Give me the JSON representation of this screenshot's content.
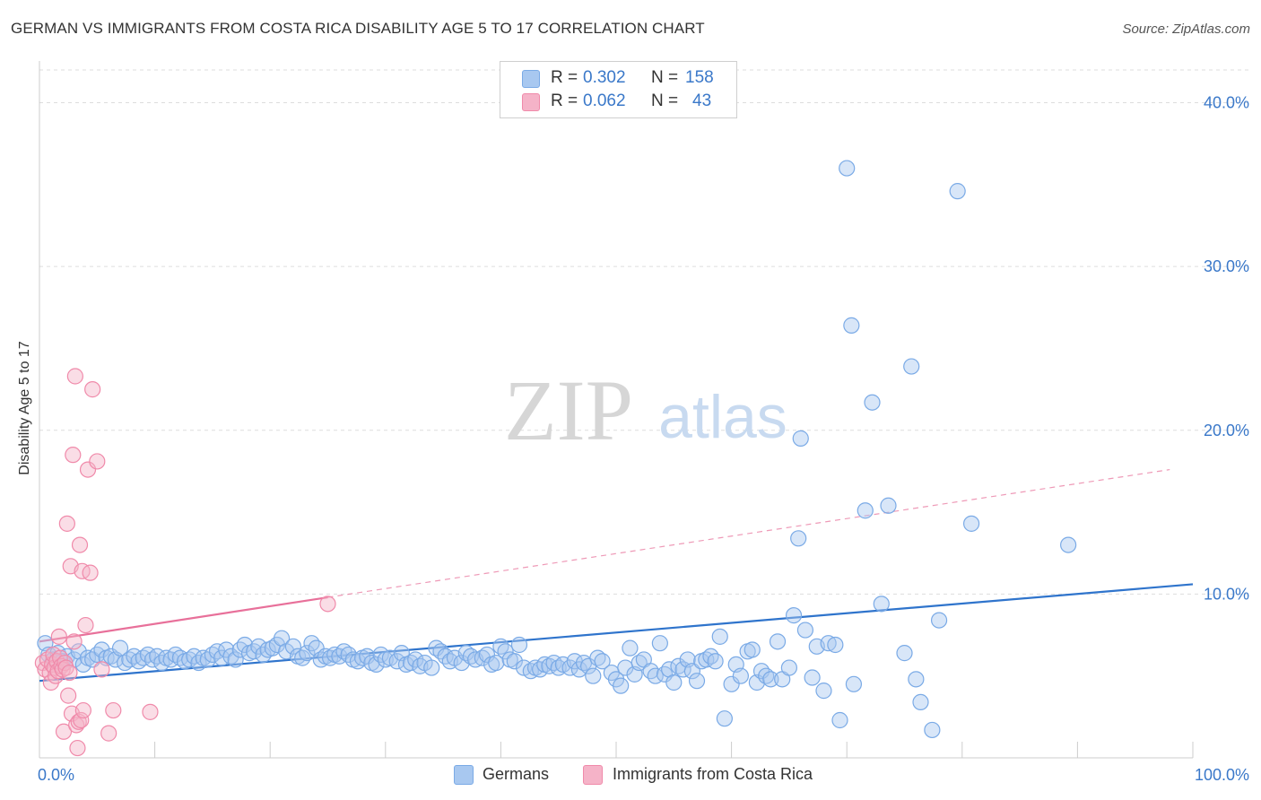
{
  "title": "GERMAN VS IMMIGRANTS FROM COSTA RICA DISABILITY AGE 5 TO 17 CORRELATION CHART",
  "source": "Source: ZipAtlas.com",
  "watermark": {
    "zip": "ZIP",
    "atlas": "atlas"
  },
  "legend_top": {
    "rows": [
      {
        "r_label": "R =",
        "r_value": "0.302",
        "n_label": "N =",
        "n_value": "158",
        "color": "#a8c8f0"
      },
      {
        "r_label": "R =",
        "r_value": "0.062",
        "n_label": "N =",
        "n_value": "43",
        "color": "#f5b3c8"
      }
    ]
  },
  "legend_bottom": [
    {
      "label": "Germans",
      "color": "#a8c8f0"
    },
    {
      "label": "Immigrants from Costa Rica",
      "color": "#f5b3c8"
    }
  ],
  "chart_data": {
    "type": "scatter",
    "xlabel": "",
    "ylabel": "Disability Age 5 to 17",
    "xlim": [
      0,
      100
    ],
    "ylim": [
      0,
      42
    ],
    "x_ticks": [
      {
        "v": 0,
        "label": "0.0%"
      },
      {
        "v": 100,
        "label": "100.0%"
      }
    ],
    "y_ticks": [
      {
        "v": 10,
        "label": "10.0%"
      },
      {
        "v": 20,
        "label": "20.0%"
      },
      {
        "v": 30,
        "label": "30.0%"
      },
      {
        "v": 40,
        "label": "40.0%"
      }
    ],
    "grid": true,
    "legend_position": "top-center",
    "series": [
      {
        "name": "Germans",
        "color": "#7aaae6",
        "fill": "rgba(168,200,240,0.45)",
        "trend": {
          "x0": 0,
          "y0": 4.7,
          "x1": 100,
          "y1": 10.6,
          "color": "#2f74cc"
        },
        "points": [
          [
            0.5,
            7.0
          ],
          [
            0.8,
            6.3
          ],
          [
            1.2,
            6.0
          ],
          [
            1.6,
            6.4
          ],
          [
            2.0,
            5.9
          ],
          [
            2.4,
            6.2
          ],
          [
            3.0,
            6.0
          ],
          [
            3.4,
            6.5
          ],
          [
            3.8,
            5.7
          ],
          [
            4.2,
            6.1
          ],
          [
            4.6,
            6.0
          ],
          [
            5.0,
            6.3
          ],
          [
            5.4,
            6.6
          ],
          [
            5.8,
            6.1
          ],
          [
            6.2,
            6.2
          ],
          [
            6.6,
            6.0
          ],
          [
            7.0,
            6.7
          ],
          [
            7.4,
            5.8
          ],
          [
            7.8,
            6.0
          ],
          [
            8.2,
            6.2
          ],
          [
            8.6,
            5.9
          ],
          [
            9.0,
            6.1
          ],
          [
            9.4,
            6.3
          ],
          [
            9.8,
            6.0
          ],
          [
            10.2,
            6.2
          ],
          [
            10.6,
            5.8
          ],
          [
            11.0,
            6.1
          ],
          [
            11.4,
            6.0
          ],
          [
            11.8,
            6.3
          ],
          [
            12.2,
            6.1
          ],
          [
            12.6,
            5.9
          ],
          [
            13.0,
            6.0
          ],
          [
            13.4,
            6.2
          ],
          [
            13.8,
            5.8
          ],
          [
            14.2,
            6.1
          ],
          [
            14.6,
            6.0
          ],
          [
            15.0,
            6.3
          ],
          [
            15.4,
            6.5
          ],
          [
            15.8,
            6.1
          ],
          [
            16.2,
            6.6
          ],
          [
            16.6,
            6.2
          ],
          [
            17.0,
            6.0
          ],
          [
            17.4,
            6.6
          ],
          [
            17.8,
            6.9
          ],
          [
            18.2,
            6.4
          ],
          [
            18.6,
            6.5
          ],
          [
            19.0,
            6.8
          ],
          [
            19.4,
            6.3
          ],
          [
            19.8,
            6.6
          ],
          [
            20.2,
            6.7
          ],
          [
            20.6,
            6.9
          ],
          [
            21.0,
            7.3
          ],
          [
            21.4,
            6.5
          ],
          [
            22.0,
            6.8
          ],
          [
            22.4,
            6.2
          ],
          [
            22.8,
            6.1
          ],
          [
            23.2,
            6.4
          ],
          [
            23.6,
            7.0
          ],
          [
            24.0,
            6.7
          ],
          [
            24.4,
            6.0
          ],
          [
            24.8,
            6.2
          ],
          [
            25.2,
            6.1
          ],
          [
            25.6,
            6.3
          ],
          [
            26.0,
            6.2
          ],
          [
            26.4,
            6.5
          ],
          [
            26.8,
            6.3
          ],
          [
            27.2,
            6.0
          ],
          [
            27.6,
            5.9
          ],
          [
            28.0,
            6.1
          ],
          [
            28.4,
            6.2
          ],
          [
            28.8,
            5.8
          ],
          [
            29.2,
            5.7
          ],
          [
            29.6,
            6.3
          ],
          [
            30.0,
            6.0
          ],
          [
            30.4,
            6.1
          ],
          [
            31.0,
            5.9
          ],
          [
            31.4,
            6.4
          ],
          [
            31.8,
            5.7
          ],
          [
            32.2,
            5.8
          ],
          [
            32.6,
            6.0
          ],
          [
            33.0,
            5.6
          ],
          [
            33.4,
            5.8
          ],
          [
            34.0,
            5.5
          ],
          [
            34.4,
            6.7
          ],
          [
            34.8,
            6.5
          ],
          [
            35.2,
            6.2
          ],
          [
            35.6,
            5.9
          ],
          [
            36.0,
            6.1
          ],
          [
            36.6,
            5.8
          ],
          [
            37.0,
            6.4
          ],
          [
            37.4,
            6.2
          ],
          [
            37.8,
            6.0
          ],
          [
            38.4,
            6.1
          ],
          [
            38.8,
            6.3
          ],
          [
            39.2,
            5.7
          ],
          [
            39.6,
            5.8
          ],
          [
            40.0,
            6.8
          ],
          [
            40.4,
            6.5
          ],
          [
            40.8,
            6.0
          ],
          [
            41.2,
            5.9
          ],
          [
            41.6,
            6.9
          ],
          [
            42.0,
            5.5
          ],
          [
            42.6,
            5.3
          ],
          [
            43.0,
            5.5
          ],
          [
            43.4,
            5.4
          ],
          [
            43.8,
            5.7
          ],
          [
            44.2,
            5.6
          ],
          [
            44.6,
            5.8
          ],
          [
            45.0,
            5.5
          ],
          [
            45.4,
            5.7
          ],
          [
            46.0,
            5.5
          ],
          [
            46.4,
            5.9
          ],
          [
            46.8,
            5.4
          ],
          [
            47.2,
            5.8
          ],
          [
            47.6,
            5.6
          ],
          [
            48.0,
            5.0
          ],
          [
            48.4,
            6.1
          ],
          [
            48.8,
            5.9
          ],
          [
            49.6,
            5.2
          ],
          [
            50.0,
            4.8
          ],
          [
            50.4,
            4.4
          ],
          [
            50.8,
            5.5
          ],
          [
            51.2,
            6.7
          ],
          [
            51.6,
            5.1
          ],
          [
            52.0,
            5.8
          ],
          [
            52.4,
            6.0
          ],
          [
            53.0,
            5.3
          ],
          [
            53.4,
            5.0
          ],
          [
            53.8,
            7.0
          ],
          [
            54.2,
            5.1
          ],
          [
            54.6,
            5.4
          ],
          [
            55.0,
            4.6
          ],
          [
            55.4,
            5.6
          ],
          [
            55.8,
            5.4
          ],
          [
            56.2,
            6.0
          ],
          [
            56.6,
            5.3
          ],
          [
            57.0,
            4.7
          ],
          [
            57.4,
            5.9
          ],
          [
            57.8,
            6.0
          ],
          [
            58.2,
            6.2
          ],
          [
            58.6,
            5.9
          ],
          [
            59.0,
            7.4
          ],
          [
            59.4,
            2.4
          ],
          [
            60.0,
            4.5
          ],
          [
            60.4,
            5.7
          ],
          [
            60.8,
            5.0
          ],
          [
            61.4,
            6.5
          ],
          [
            61.8,
            6.6
          ],
          [
            62.2,
            4.6
          ],
          [
            62.6,
            5.3
          ],
          [
            63.0,
            5.0
          ],
          [
            63.4,
            4.8
          ],
          [
            64.0,
            7.1
          ],
          [
            64.4,
            4.8
          ],
          [
            65.0,
            5.5
          ],
          [
            65.4,
            8.7
          ],
          [
            65.8,
            13.4
          ],
          [
            66.0,
            19.5
          ],
          [
            66.4,
            7.8
          ],
          [
            67.0,
            4.9
          ],
          [
            67.4,
            6.8
          ],
          [
            68.0,
            4.1
          ],
          [
            68.4,
            7.0
          ],
          [
            69.0,
            6.9
          ],
          [
            69.4,
            2.3
          ],
          [
            70.0,
            36.0
          ],
          [
            70.4,
            26.4
          ],
          [
            70.6,
            4.5
          ],
          [
            71.6,
            15.1
          ],
          [
            72.2,
            21.7
          ],
          [
            73.0,
            9.4
          ],
          [
            73.6,
            15.4
          ],
          [
            75.0,
            6.4
          ],
          [
            75.6,
            23.9
          ],
          [
            76.0,
            4.8
          ],
          [
            76.4,
            3.4
          ],
          [
            77.4,
            1.7
          ],
          [
            78.0,
            8.4
          ],
          [
            79.6,
            34.6
          ],
          [
            80.8,
            14.3
          ],
          [
            89.2,
            13.0
          ]
        ]
      },
      {
        "name": "Immigrants from Costa Rica",
        "color": "#f08aaa",
        "fill": "rgba(245,179,200,0.45)",
        "trend": {
          "x0": 0,
          "y0": 7.1,
          "x1": 25,
          "y1": 9.8,
          "dash_x1": 98,
          "dash_y1": 17.6,
          "color": "#e8709a"
        },
        "points": [
          [
            0.3,
            5.8
          ],
          [
            0.5,
            5.4
          ],
          [
            0.7,
            6.0
          ],
          [
            0.9,
            5.2
          ],
          [
            1.0,
            4.6
          ],
          [
            1.1,
            5.7
          ],
          [
            1.2,
            6.3
          ],
          [
            1.3,
            5.5
          ],
          [
            1.4,
            5.0
          ],
          [
            1.5,
            5.9
          ],
          [
            1.6,
            5.3
          ],
          [
            1.7,
            7.4
          ],
          [
            1.8,
            6.1
          ],
          [
            1.9,
            5.6
          ],
          [
            2.0,
            5.4
          ],
          [
            2.1,
            1.6
          ],
          [
            2.2,
            5.8
          ],
          [
            2.3,
            5.5
          ],
          [
            2.4,
            14.3
          ],
          [
            2.5,
            3.8
          ],
          [
            2.6,
            5.2
          ],
          [
            2.7,
            11.7
          ],
          [
            2.8,
            2.7
          ],
          [
            2.9,
            18.5
          ],
          [
            3.0,
            7.1
          ],
          [
            3.1,
            23.3
          ],
          [
            3.2,
            2.0
          ],
          [
            3.3,
            0.6
          ],
          [
            3.4,
            2.2
          ],
          [
            3.5,
            13.0
          ],
          [
            3.6,
            2.3
          ],
          [
            3.7,
            11.4
          ],
          [
            3.8,
            2.9
          ],
          [
            4.0,
            8.1
          ],
          [
            4.2,
            17.6
          ],
          [
            4.4,
            11.3
          ],
          [
            4.6,
            22.5
          ],
          [
            5.0,
            18.1
          ],
          [
            5.4,
            5.4
          ],
          [
            6.0,
            1.5
          ],
          [
            6.4,
            2.9
          ],
          [
            9.6,
            2.8
          ],
          [
            25.0,
            9.4
          ]
        ]
      }
    ]
  }
}
